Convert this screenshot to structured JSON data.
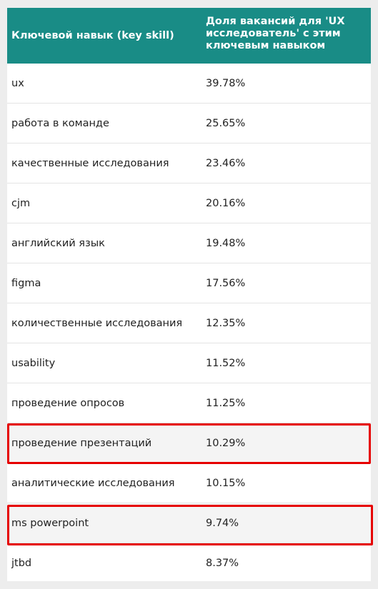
{
  "table": {
    "headers": [
      "Ключевой навык (key skill)",
      "Доля вакансий для 'UX исследователь' с этим ключевым навыком"
    ],
    "rows": [
      {
        "skill": "ux",
        "share": "39.78%"
      },
      {
        "skill": "работа в команде",
        "share": "25.65%"
      },
      {
        "skill": "качественные исследования",
        "share": "23.46%"
      },
      {
        "skill": "cjm",
        "share": "20.16%"
      },
      {
        "skill": "английский язык",
        "share": "19.48%"
      },
      {
        "skill": "figma",
        "share": "17.56%"
      },
      {
        "skill": "количественные исследования",
        "share": "12.35%"
      },
      {
        "skill": "usability",
        "share": "11.52%"
      },
      {
        "skill": "проведение опросов",
        "share": "11.25%"
      },
      {
        "skill": "проведение презентаций",
        "share": "10.29%"
      },
      {
        "skill": "аналитические исследования",
        "share": "10.15%"
      },
      {
        "skill": "ms powerpoint",
        "share": "9.74%"
      },
      {
        "skill": "jtbd",
        "share": "8.37%"
      }
    ]
  },
  "colors": {
    "header_bg": "#198c86",
    "highlight": "#e60000"
  }
}
